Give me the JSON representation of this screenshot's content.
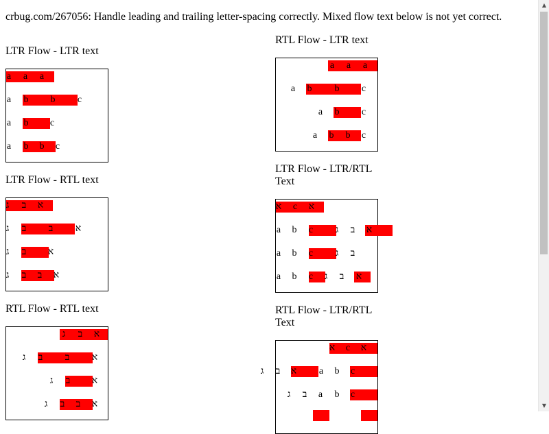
{
  "page": {
    "bug_title": "crbug.com/267056: Handle leading and trailing letter-spacing correctly. Mixed flow text below is not yet correct."
  },
  "colors": {
    "highlight": "#ff0000",
    "text": "#000000",
    "border": "#000000"
  },
  "sections": {
    "ltr_ltr": {
      "heading": "LTR Flow - LTR text",
      "rows": [
        {
          "chars": [
            "a",
            "a",
            "a"
          ]
        },
        {
          "chars": [
            "a",
            "b",
            "b",
            "c"
          ]
        },
        {
          "chars": [
            "a",
            "b",
            "c"
          ]
        },
        {
          "chars": [
            "a",
            "b",
            "b",
            "c"
          ]
        }
      ]
    },
    "rtl_ltr": {
      "heading": "RTL Flow - LTR text",
      "rows": [
        {
          "chars": [
            "a",
            "a",
            "a"
          ]
        },
        {
          "chars": [
            "a",
            "b",
            "b",
            "c"
          ]
        },
        {
          "chars": [
            "a",
            "b",
            "c"
          ]
        },
        {
          "chars": [
            "a",
            "b",
            "b",
            "c"
          ]
        }
      ]
    },
    "ltr_rtl": {
      "heading": "LTR Flow - RTL text",
      "rows": [
        {
          "chars": [
            "ג",
            "ב",
            "א"
          ]
        },
        {
          "chars": [
            "ג",
            "ב",
            "ב",
            "א"
          ]
        },
        {
          "chars": [
            "ג",
            "ב",
            "א"
          ]
        },
        {
          "chars": [
            "ג",
            "ב",
            "ב",
            "א"
          ]
        }
      ]
    },
    "ltr_mixed": {
      "heading_line1": "LTR Flow - LTR/RTL",
      "heading_line2": "Text",
      "rows": [
        {
          "chars": [
            "א",
            "c",
            "א"
          ]
        },
        {
          "chars": [
            "a",
            "b",
            "c",
            "ג",
            "ב",
            "א"
          ]
        },
        {
          "chars": [
            "a",
            "b",
            "c",
            "ג",
            "ב"
          ]
        },
        {
          "chars": [
            "a",
            "b",
            "c",
            "ג",
            "ב",
            "א"
          ]
        }
      ]
    },
    "rtl_rtl": {
      "heading": "RTL Flow - RTL text",
      "rows": [
        {
          "chars": [
            "ג",
            "ב",
            "א"
          ]
        },
        {
          "chars": [
            "ג",
            "ב",
            "ב",
            "א"
          ]
        },
        {
          "chars": [
            "ג",
            "ב",
            "א"
          ]
        },
        {
          "chars": [
            "ג",
            "ב",
            "ב",
            "א"
          ]
        }
      ]
    },
    "rtl_mixed": {
      "heading_line1": "RTL Flow - LTR/RTL",
      "heading_line2": "Text",
      "rows": [
        {
          "chars": [
            "א",
            "c",
            "א"
          ]
        },
        {
          "chars": [
            "ג",
            "ב",
            "א",
            "a",
            "b",
            "c"
          ]
        },
        {
          "chars": [
            "ג",
            "ב",
            "a",
            "b",
            "c"
          ]
        },
        {
          "chars": [
            "",
            "",
            ""
          ]
        }
      ]
    }
  },
  "scrollbar": {
    "up_icon": "▲",
    "down_icon": "▼"
  }
}
